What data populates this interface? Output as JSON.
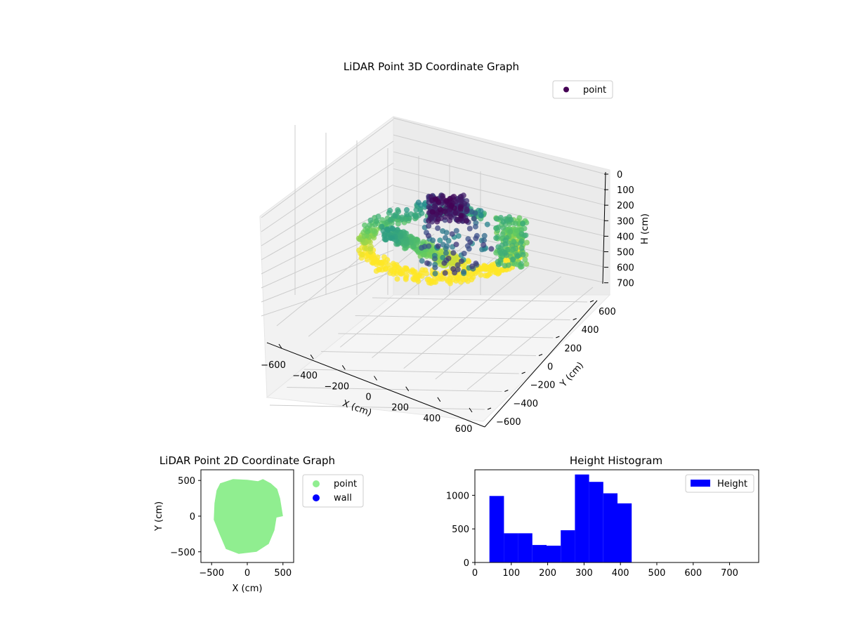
{
  "colors": {
    "viridis_low": "#440154",
    "viridis_mid": "#21918c",
    "viridis_high": "#fde725",
    "point_2d": "#90ee90",
    "wall": "#0000ff",
    "histogram": "#0000ff",
    "pane": "#f2f2f2",
    "grid": "#cccccc"
  },
  "chart_data": [
    {
      "type": "scatter",
      "subtype": "3d",
      "title": "LiDAR Point 3D Coordinate Graph",
      "xlabel": "X (cm)",
      "ylabel": "Y (cm)",
      "zlabel": "H (cm)",
      "xticks": [
        "−600",
        "−400",
        "−200",
        "0",
        "200",
        "400",
        "600"
      ],
      "yticks": [
        "−600",
        "−400",
        "−200",
        "0",
        "200",
        "400",
        "600"
      ],
      "zticks": [
        "0",
        "100",
        "200",
        "300",
        "400",
        "500",
        "600",
        "700"
      ],
      "xlim": [
        -650,
        650
      ],
      "ylim": [
        -650,
        650
      ],
      "zlim": [
        750,
        0
      ],
      "z_axis_inverted": true,
      "colormap": "viridis",
      "legend": {
        "entries": [
          "point"
        ],
        "position": "upper-right"
      },
      "grid": true
    },
    {
      "type": "scatter",
      "title": "LiDAR Point 2D Coordinate Graph",
      "xlabel": "X (cm)",
      "ylabel": "Y (cm)",
      "xticks": [
        "−500",
        "0",
        "500"
      ],
      "yticks": [
        "−500",
        "0",
        "500"
      ],
      "xlim": [
        -650,
        650
      ],
      "ylim": [
        -650,
        650
      ],
      "series": [
        {
          "name": "point",
          "color": "#90ee90"
        },
        {
          "name": "wall",
          "color": "#0000ff"
        }
      ],
      "legend": {
        "position": "outside-right"
      },
      "grid": false
    },
    {
      "type": "bar",
      "subtype": "histogram",
      "title": "Height Histogram",
      "xticks": [
        "0",
        "100",
        "200",
        "300",
        "400",
        "500",
        "600",
        "700"
      ],
      "yticks": [
        "0",
        "500",
        "1000"
      ],
      "xlim": [
        0,
        780
      ],
      "ylim": [
        0,
        1380
      ],
      "bins": [
        {
          "x0": 40,
          "x1": 80,
          "count": 990
        },
        {
          "x0": 80,
          "x1": 119,
          "count": 435
        },
        {
          "x0": 119,
          "x1": 158,
          "count": 435
        },
        {
          "x0": 158,
          "x1": 197,
          "count": 260
        },
        {
          "x0": 197,
          "x1": 236,
          "count": 250
        },
        {
          "x0": 236,
          "x1": 275,
          "count": 480
        },
        {
          "x0": 275,
          "x1": 314,
          "count": 1310
        },
        {
          "x0": 314,
          "x1": 353,
          "count": 1200
        },
        {
          "x0": 353,
          "x1": 392,
          "count": 1030
        },
        {
          "x0": 392,
          "x1": 431,
          "count": 880
        }
      ],
      "series": [
        {
          "name": "Height",
          "color": "#0000ff"
        }
      ],
      "legend": {
        "position": "upper-right"
      },
      "grid": false
    }
  ]
}
